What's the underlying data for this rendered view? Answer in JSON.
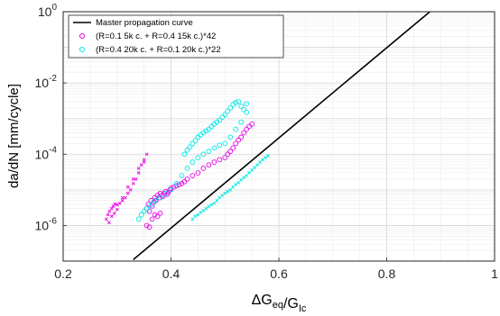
{
  "chart_data": {
    "type": "scatter",
    "xlabel": "ΔG_eq/G_Ic",
    "ylabel": "da/dN [mm/cycle]",
    "xlim": [
      0.2,
      1.0
    ],
    "ylim": [
      1e-07,
      1
    ],
    "yscale": "log",
    "grid": true,
    "legend_position": "top-left",
    "x_ticks": [
      "0.2",
      "0.4",
      "0.6",
      "0.8",
      "1"
    ],
    "x_tick_values": [
      0.2,
      0.4,
      0.6,
      0.8,
      1.0
    ],
    "y_ticks": [
      {
        "value": 1e-06,
        "base": "10",
        "exp": "-6"
      },
      {
        "value": 0.0001,
        "base": "10",
        "exp": "-4"
      },
      {
        "value": 0.01,
        "base": "10",
        "exp": "-2"
      },
      {
        "value": 1,
        "base": "10",
        "exp": "0"
      }
    ],
    "series": [
      {
        "name": "Master propagation curve",
        "kind": "line",
        "color": "#000000",
        "x": [
          0.33,
          0.88
        ],
        "y": [
          1.1e-07,
          1.0
        ]
      },
      {
        "name": "(R=0.1 5k c. + R=0.4 15k c.)*42",
        "kind": "circle",
        "color": "#e600e6",
        "x": [
          0.355,
          0.358,
          0.36,
          0.363,
          0.365,
          0.368,
          0.37,
          0.372,
          0.375,
          0.378,
          0.38,
          0.383,
          0.385,
          0.388,
          0.39,
          0.393,
          0.395,
          0.398,
          0.4,
          0.405,
          0.41,
          0.415,
          0.42,
          0.425,
          0.43,
          0.44,
          0.45,
          0.46,
          0.47,
          0.48,
          0.49,
          0.5,
          0.505,
          0.51,
          0.515,
          0.52,
          0.525,
          0.53,
          0.535,
          0.54,
          0.545,
          0.55,
          0.355,
          0.36,
          0.365,
          0.37,
          0.375,
          0.38
        ],
        "y": [
          3e-06,
          4e-06,
          2.5e-06,
          5e-06,
          3.5e-06,
          4.5e-06,
          6e-06,
          5e-06,
          7e-06,
          6e-06,
          8e-06,
          7e-06,
          6.5e-06,
          8e-06,
          9e-06,
          7.5e-06,
          8.5e-06,
          1e-05,
          1.1e-05,
          1.2e-05,
          1.3e-05,
          1.4e-05,
          1.5e-05,
          1.7e-05,
          2e-05,
          2.5e-05,
          3e-05,
          4e-05,
          5e-05,
          6e-05,
          7e-05,
          8e-05,
          0.0001,
          0.00012,
          0.00015,
          0.0002,
          0.00025,
          0.0003,
          0.0004,
          0.0005,
          0.0006,
          0.0007,
          1e-06,
          9e-07,
          1.5e-06,
          2e-06,
          1.8e-06,
          2.2e-06
        ]
      },
      {
        "name": "(R=0.4 20k c. + R=0.1 20k c.)*22",
        "kind": "circle",
        "color": "#00e6e6",
        "x": [
          0.34,
          0.345,
          0.35,
          0.355,
          0.36,
          0.365,
          0.37,
          0.38,
          0.39,
          0.4,
          0.41,
          0.42,
          0.43,
          0.44,
          0.45,
          0.46,
          0.47,
          0.48,
          0.49,
          0.5,
          0.51,
          0.52,
          0.53,
          0.54,
          0.425,
          0.43,
          0.435,
          0.44,
          0.445,
          0.45,
          0.455,
          0.46,
          0.465,
          0.47,
          0.475,
          0.48,
          0.485,
          0.49,
          0.495,
          0.5,
          0.505,
          0.51,
          0.515,
          0.52,
          0.525,
          0.53,
          0.535,
          0.54
        ],
        "y": [
          1.5e-06,
          2e-06,
          2.5e-06,
          3e-06,
          3.5e-06,
          4e-06,
          5e-06,
          6e-06,
          8e-06,
          1e-05,
          1.5e-05,
          2.5e-05,
          4e-05,
          6e-05,
          8e-05,
          0.0001,
          0.00012,
          0.00015,
          0.00018,
          0.0002,
          0.0003,
          0.0005,
          0.0008,
          0.0015,
          0.0001,
          0.00013,
          0.00016,
          0.0002,
          0.00024,
          0.0003,
          0.00035,
          0.0004,
          0.00045,
          0.0005,
          0.0006,
          0.0007,
          0.0008,
          0.0009,
          0.0011,
          0.0013,
          0.0016,
          0.002,
          0.0025,
          0.0028,
          0.003,
          0.0022,
          0.0018,
          0.0026
        ]
      },
      {
        "name": "magenta crosses",
        "kind": "cross",
        "color": "#e600e6",
        "x": [
          0.28,
          0.283,
          0.286,
          0.29,
          0.293,
          0.296,
          0.3,
          0.305,
          0.31,
          0.315,
          0.32,
          0.325,
          0.33,
          0.335,
          0.34,
          0.345,
          0.35,
          0.355,
          0.285,
          0.29,
          0.295,
          0.3,
          0.31,
          0.32,
          0.33,
          0.34,
          0.35
        ],
        "y": [
          1.5e-06,
          2e-06,
          2.5e-06,
          3e-06,
          3.5e-06,
          4e-06,
          3.8e-06,
          4.2e-06,
          5e-06,
          6e-06,
          8e-06,
          1e-05,
          1.5e-05,
          2e-05,
          3e-05,
          5e-05,
          7e-05,
          0.0001,
          1.2e-06,
          1.8e-06,
          2.2e-06,
          2.8e-06,
          6e-06,
          1.2e-05,
          2e-05,
          4e-05,
          6e-05
        ]
      },
      {
        "name": "cyan crosses",
        "kind": "cross",
        "color": "#00e6e6",
        "x": [
          0.44,
          0.445,
          0.45,
          0.455,
          0.46,
          0.465,
          0.47,
          0.475,
          0.48,
          0.485,
          0.49,
          0.495,
          0.5,
          0.505,
          0.51,
          0.515,
          0.52,
          0.525,
          0.53,
          0.535,
          0.54,
          0.545,
          0.55,
          0.555,
          0.56,
          0.565,
          0.57,
          0.575,
          0.58
        ],
        "y": [
          1.5e-06,
          1.8e-06,
          2e-06,
          2.3e-06,
          2.6e-06,
          3e-06,
          3.4e-06,
          3.8e-06,
          4.2e-06,
          5e-06,
          6e-06,
          7e-06,
          8e-06,
          9e-06,
          1e-05,
          1.2e-05,
          1.4e-05,
          1.6e-05,
          1.9e-05,
          2.2e-05,
          2.5e-05,
          3e-05,
          3.6e-05,
          4.2e-05,
          5e-05,
          6e-05,
          7e-05,
          8e-05,
          9e-05
        ]
      }
    ]
  }
}
